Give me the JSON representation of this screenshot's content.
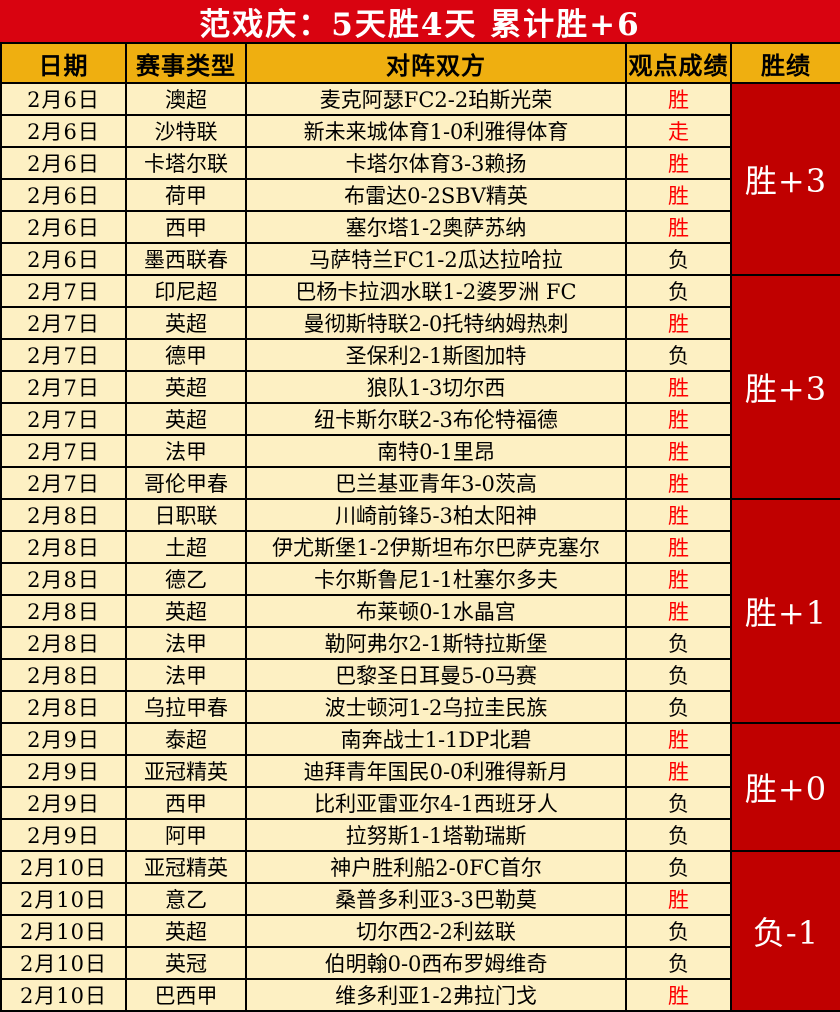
{
  "title": "范戏庆：5天胜4天  累计胜+6",
  "table": {
    "headers": [
      "日期",
      "赛事类型",
      "对阵双方",
      "观点成绩",
      "胜绩"
    ],
    "rows": [
      {
        "date": "2月6日",
        "league": "澳超",
        "match": "麦克阿瑟FC2-2珀斯光荣",
        "result": "胜",
        "result_color": "red"
      },
      {
        "date": "2月6日",
        "league": "沙特联",
        "match": "新未来城体育1-0利雅得体育",
        "result": "走",
        "result_color": "red"
      },
      {
        "date": "2月6日",
        "league": "卡塔尔联",
        "match": "卡塔尔体育3-3赖扬",
        "result": "胜",
        "result_color": "red"
      },
      {
        "date": "2月6日",
        "league": "荷甲",
        "match": "布雷达0-2SBV精英",
        "result": "胜",
        "result_color": "red"
      },
      {
        "date": "2月6日",
        "league": "西甲",
        "match": "塞尔塔1-2奥萨苏纳",
        "result": "胜",
        "result_color": "red"
      },
      {
        "date": "2月6日",
        "league": "墨西联春",
        "match": "马萨特兰FC1-2瓜达拉哈拉",
        "result": "负",
        "result_color": "black"
      },
      {
        "date": "2月7日",
        "league": "印尼超",
        "match": "巴杨卡拉泗水联1-2婆罗洲 FC",
        "result": "负",
        "result_color": "black"
      },
      {
        "date": "2月7日",
        "league": "英超",
        "match": "曼彻斯特联2-0托特纳姆热刺",
        "result": "胜",
        "result_color": "red"
      },
      {
        "date": "2月7日",
        "league": "德甲",
        "match": "圣保利2-1斯图加特",
        "result": "负",
        "result_color": "black"
      },
      {
        "date": "2月7日",
        "league": "英超",
        "match": "狼队1-3切尔西",
        "result": "胜",
        "result_color": "red"
      },
      {
        "date": "2月7日",
        "league": "英超",
        "match": "纽卡斯尔联2-3布伦特福德",
        "result": "胜",
        "result_color": "red"
      },
      {
        "date": "2月7日",
        "league": "法甲",
        "match": "南特0-1里昂",
        "result": "胜",
        "result_color": "red"
      },
      {
        "date": "2月7日",
        "league": "哥伦甲春",
        "match": "巴兰基亚青年3-0茨高",
        "result": "胜",
        "result_color": "red"
      },
      {
        "date": "2月8日",
        "league": "日职联",
        "match": "川崎前锋5-3柏太阳神",
        "result": "胜",
        "result_color": "red"
      },
      {
        "date": "2月8日",
        "league": "土超",
        "match": "伊尤斯堡1-2伊斯坦布尔巴萨克塞尔",
        "result": "胜",
        "result_color": "red"
      },
      {
        "date": "2月8日",
        "league": "德乙",
        "match": "卡尔斯鲁尼1-1杜塞尔多夫",
        "result": "胜",
        "result_color": "red"
      },
      {
        "date": "2月8日",
        "league": "英超",
        "match": "布莱顿0-1水晶宫",
        "result": "胜",
        "result_color": "red"
      },
      {
        "date": "2月8日",
        "league": "法甲",
        "match": "勒阿弗尔2-1斯特拉斯堡",
        "result": "负",
        "result_color": "black"
      },
      {
        "date": "2月8日",
        "league": "法甲",
        "match": "巴黎圣日耳曼5-0马赛",
        "result": "负",
        "result_color": "black"
      },
      {
        "date": "2月8日",
        "league": "乌拉甲春",
        "match": "波士顿河1-2乌拉圭民族",
        "result": "负",
        "result_color": "black"
      },
      {
        "date": "2月9日",
        "league": "泰超",
        "match": "南奔战士1-1DP北碧",
        "result": "胜",
        "result_color": "red"
      },
      {
        "date": "2月9日",
        "league": "亚冠精英",
        "match": "迪拜青年国民0-0利雅得新月",
        "result": "胜",
        "result_color": "red"
      },
      {
        "date": "2月9日",
        "league": "西甲",
        "match": "比利亚雷亚尔4-1西班牙人",
        "result": "负",
        "result_color": "black"
      },
      {
        "date": "2月9日",
        "league": "阿甲",
        "match": "拉努斯1-1塔勒瑞斯",
        "result": "负",
        "result_color": "black"
      },
      {
        "date": "2月10日",
        "league": "亚冠精英",
        "match": "神户胜利船2-0FC首尔",
        "result": "负",
        "result_color": "black"
      },
      {
        "date": "2月10日",
        "league": "意乙",
        "match": "桑普多利亚3-3巴勒莫",
        "result": "胜",
        "result_color": "red"
      },
      {
        "date": "2月10日",
        "league": "英超",
        "match": "切尔西2-2利兹联",
        "result": "负",
        "result_color": "black"
      },
      {
        "date": "2月10日",
        "league": "英冠",
        "match": "伯明翰0-0西布罗姆维奇",
        "result": "负",
        "result_color": "black"
      },
      {
        "date": "2月10日",
        "league": "巴西甲",
        "match": "维多利亚1-2弗拉门戈",
        "result": "胜",
        "result_color": "red"
      }
    ],
    "groups": [
      {
        "start": 0,
        "span": 6,
        "label": "胜+3"
      },
      {
        "start": 6,
        "span": 7,
        "label": "胜+3"
      },
      {
        "start": 13,
        "span": 7,
        "label": "胜+1"
      },
      {
        "start": 20,
        "span": 4,
        "label": "胜+0"
      },
      {
        "start": 24,
        "span": 5,
        "label": "负-1"
      }
    ]
  },
  "colors": {
    "title_bg": "#d90310",
    "title_text": "#ffffff",
    "header_bg": "#efaf10",
    "header_text": "#000000",
    "row_bg": "#fdf0c3",
    "border": "#000000",
    "result_win": "#fd0000",
    "result_loss": "#000000",
    "score_bg": "#c00000",
    "score_text": "#ffffff"
  }
}
